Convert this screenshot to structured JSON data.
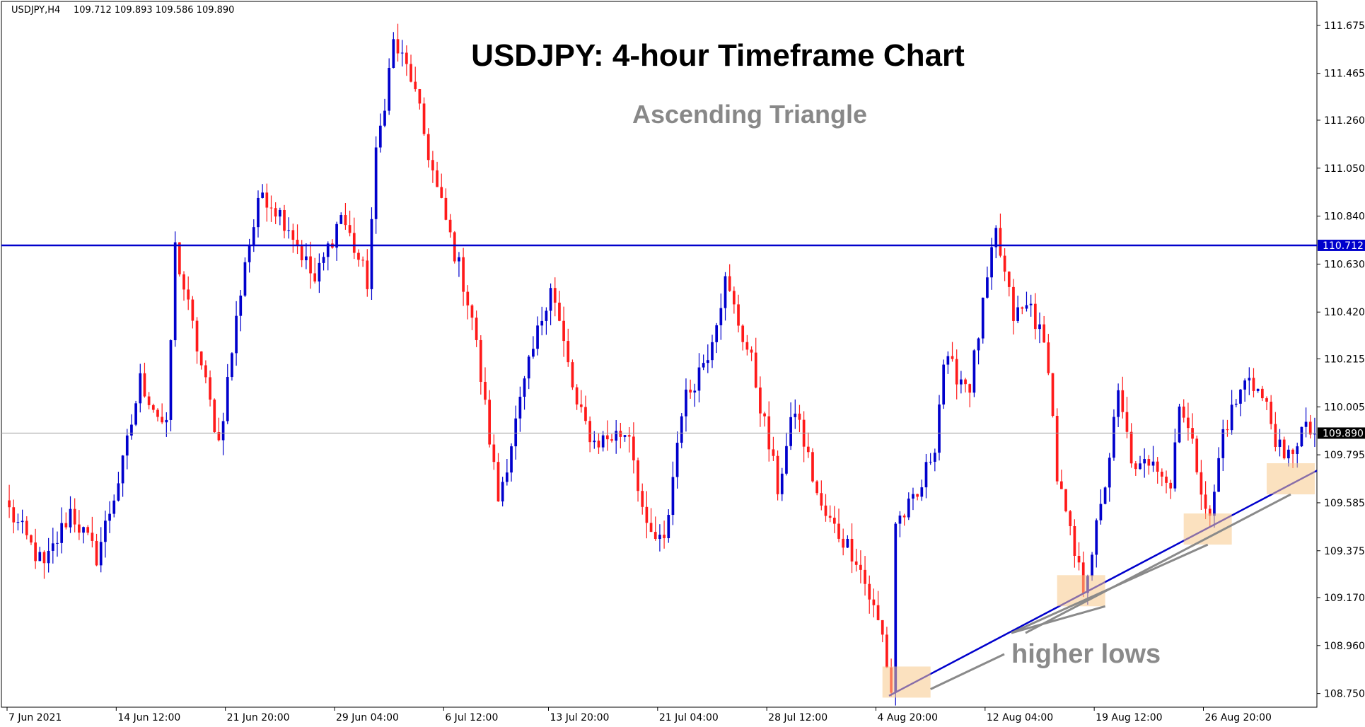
{
  "header": {
    "symbol_text": "USDJPY,H4",
    "ohlc_text": "109.712 109.893 109.586 109.890"
  },
  "chart_data": {
    "type": "candlestick",
    "title": "USDJPY: 4-hour Timeframe Chart",
    "subtitle": "Ascending Triangle",
    "annotation": "higher lows",
    "yaxis_ticks": [
      "111.675",
      "111.465",
      "111.260",
      "111.050",
      "110.840",
      "110.630",
      "110.420",
      "110.215",
      "110.005",
      "109.795",
      "109.585",
      "109.375",
      "109.170",
      "108.960",
      "108.750"
    ],
    "ylim": [
      108.69,
      111.78
    ],
    "xaxis_ticks": [
      "7 Jun 2021",
      "14 Jun 12:00",
      "21 Jun 20:00",
      "29 Jun 04:00",
      "6 Jul 12:00",
      "13 Jul 20:00",
      "21 Jul 04:00",
      "28 Jul 12:00",
      "4 Aug 20:00",
      "12 Aug 04:00",
      "19 Aug 12:00",
      "26 Aug 20:00"
    ],
    "resistance_level": 110.712,
    "resistance_label": "110.712",
    "current_price": 109.89,
    "current_price_label": "109.890",
    "trendline": {
      "from_bar": 202,
      "from_price": 108.74,
      "to_bar": 370,
      "to_price": 110.43
    },
    "anchors": [
      {
        "bar": 0,
        "price": 109.55
      },
      {
        "bar": 8,
        "price": 109.3
      },
      {
        "bar": 14,
        "price": 109.55
      },
      {
        "bar": 20,
        "price": 109.35
      },
      {
        "bar": 26,
        "price": 109.75
      },
      {
        "bar": 30,
        "price": 110.12
      },
      {
        "bar": 36,
        "price": 109.9
      },
      {
        "bar": 38,
        "price": 110.7
      },
      {
        "bar": 42,
        "price": 110.35
      },
      {
        "bar": 48,
        "price": 109.85
      },
      {
        "bar": 54,
        "price": 110.65
      },
      {
        "bar": 58,
        "price": 110.95
      },
      {
        "bar": 64,
        "price": 110.8
      },
      {
        "bar": 70,
        "price": 110.55
      },
      {
        "bar": 76,
        "price": 110.85
      },
      {
        "bar": 82,
        "price": 110.55
      },
      {
        "bar": 84,
        "price": 111.1
      },
      {
        "bar": 88,
        "price": 111.6
      },
      {
        "bar": 92,
        "price": 111.45
      },
      {
        "bar": 98,
        "price": 110.95
      },
      {
        "bar": 104,
        "price": 110.55
      },
      {
        "bar": 106,
        "price": 110.4
      },
      {
        "bar": 112,
        "price": 109.6
      },
      {
        "bar": 118,
        "price": 110.1
      },
      {
        "bar": 124,
        "price": 110.55
      },
      {
        "bar": 130,
        "price": 110.0
      },
      {
        "bar": 134,
        "price": 109.85
      },
      {
        "bar": 142,
        "price": 109.9
      },
      {
        "bar": 146,
        "price": 109.45
      },
      {
        "bar": 150,
        "price": 109.4
      },
      {
        "bar": 154,
        "price": 110.0
      },
      {
        "bar": 160,
        "price": 110.25
      },
      {
        "bar": 164,
        "price": 110.55
      },
      {
        "bar": 170,
        "price": 110.2
      },
      {
        "bar": 176,
        "price": 109.65
      },
      {
        "bar": 180,
        "price": 110.0
      },
      {
        "bar": 186,
        "price": 109.55
      },
      {
        "bar": 194,
        "price": 109.35
      },
      {
        "bar": 200,
        "price": 109.0
      },
      {
        "bar": 202,
        "price": 108.76
      },
      {
        "bar": 203,
        "price": 109.5
      },
      {
        "bar": 208,
        "price": 109.6
      },
      {
        "bar": 212,
        "price": 109.85
      },
      {
        "bar": 214,
        "price": 110.2
      },
      {
        "bar": 220,
        "price": 110.1
      },
      {
        "bar": 224,
        "price": 110.55
      },
      {
        "bar": 226,
        "price": 110.76
      },
      {
        "bar": 230,
        "price": 110.4
      },
      {
        "bar": 234,
        "price": 110.45
      },
      {
        "bar": 238,
        "price": 110.2
      },
      {
        "bar": 240,
        "price": 109.7
      },
      {
        "bar": 244,
        "price": 109.35
      },
      {
        "bar": 246,
        "price": 109.22
      },
      {
        "bar": 250,
        "price": 109.55
      },
      {
        "bar": 254,
        "price": 110.05
      },
      {
        "bar": 258,
        "price": 109.7
      },
      {
        "bar": 262,
        "price": 109.8
      },
      {
        "bar": 266,
        "price": 109.65
      },
      {
        "bar": 268,
        "price": 110.05
      },
      {
        "bar": 272,
        "price": 109.75
      },
      {
        "bar": 275,
        "price": 109.5
      },
      {
        "bar": 278,
        "price": 109.9
      },
      {
        "bar": 284,
        "price": 110.15
      },
      {
        "bar": 288,
        "price": 110.0
      },
      {
        "bar": 292,
        "price": 109.75
      },
      {
        "bar": 296,
        "price": 109.9
      },
      {
        "bar": 299,
        "price": 109.89
      }
    ]
  }
}
